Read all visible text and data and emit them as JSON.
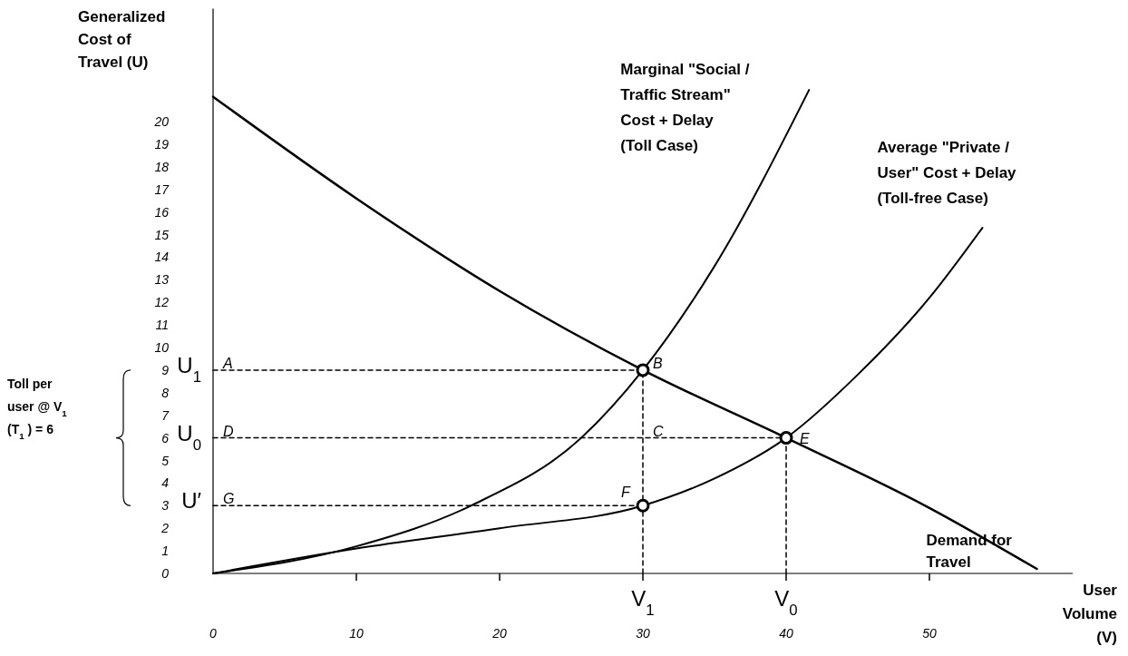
{
  "chart_data": {
    "type": "line",
    "ylabel": "Generalized Cost of Travel (U)",
    "xlabel": "User Volume (V)",
    "xlim": [
      0,
      60
    ],
    "ylim": [
      0,
      25
    ],
    "xticks": [
      0,
      10,
      20,
      30,
      40,
      50
    ],
    "yticks": [
      0,
      1,
      2,
      3,
      4,
      5,
      6,
      7,
      8,
      9,
      10,
      11,
      12,
      13,
      14,
      15,
      16,
      17,
      18,
      19,
      20
    ],
    "series": [
      {
        "name": "Demand for Travel",
        "color": "#000000",
        "x": [
          0,
          10,
          20,
          30,
          40,
          50,
          57.5
        ],
        "values": [
          21.1,
          16.6,
          12.5,
          9,
          6,
          2.9,
          0.2
        ]
      },
      {
        "name": "Marginal \"Social / Traffic Stream\" Cost + Delay (Toll Case)",
        "color": "#000000",
        "x": [
          0,
          10,
          18,
          25.7,
          30,
          35,
          41.6
        ],
        "values": [
          0,
          1.2,
          3,
          6,
          9,
          13.6,
          21.4
        ]
      },
      {
        "name": "Average \"Private / User\" Cost + Delay (Toll-free Case)",
        "color": "#000000",
        "x": [
          0,
          10,
          20,
          30,
          35,
          40,
          45,
          50,
          53.7
        ],
        "values": [
          0,
          1.1,
          2,
          3,
          4.2,
          6,
          8.8,
          12.2,
          15.3
        ]
      },
      {
        "type": "line",
        "line_style": "dashed",
        "color": "#000000",
        "x": [
          0,
          30
        ],
        "values": [
          9,
          9
        ]
      },
      {
        "type": "line",
        "line_style": "dashed",
        "color": "#000000",
        "x": [
          0,
          40
        ],
        "values": [
          6,
          6
        ]
      },
      {
        "type": "line",
        "line_style": "dashed",
        "color": "#000000",
        "x": [
          0,
          30
        ],
        "values": [
          3,
          3
        ]
      },
      {
        "type": "line",
        "line_style": "dashed",
        "color": "#000000",
        "x": [
          30,
          30
        ],
        "values": [
          0,
          9
        ]
      },
      {
        "type": "line",
        "line_style": "dashed",
        "color": "#000000",
        "x": [
          40,
          40
        ],
        "values": [
          0,
          6
        ]
      },
      {
        "type": "scatter",
        "marker": "circle",
        "color": "#000000",
        "x": [
          30,
          40,
          30
        ],
        "values": [
          9,
          6,
          3
        ]
      }
    ],
    "annotations": [
      "Toll per user @ V$_{1}$ (T$_{1}$ ) = 6",
      "U$_{1}$",
      "U$_{0}$",
      "U′",
      {
        "text": "V$_{1}$",
        "x": 30
      },
      {
        "text": "V$_{0}$",
        "x": 40
      },
      {
        "text": "A",
        "x": 0,
        "y": 9
      },
      {
        "text": "B",
        "x": 30,
        "y": 9
      },
      {
        "text": "D",
        "x": 0,
        "y": 6
      },
      {
        "text": "C",
        "x": 30,
        "y": 6
      },
      {
        "text": "E",
        "x": 40,
        "y": 6
      },
      {
        "text": "G",
        "x": 0,
        "y": 3
      },
      {
        "text": "F",
        "x": 30,
        "y": 3
      }
    ]
  }
}
